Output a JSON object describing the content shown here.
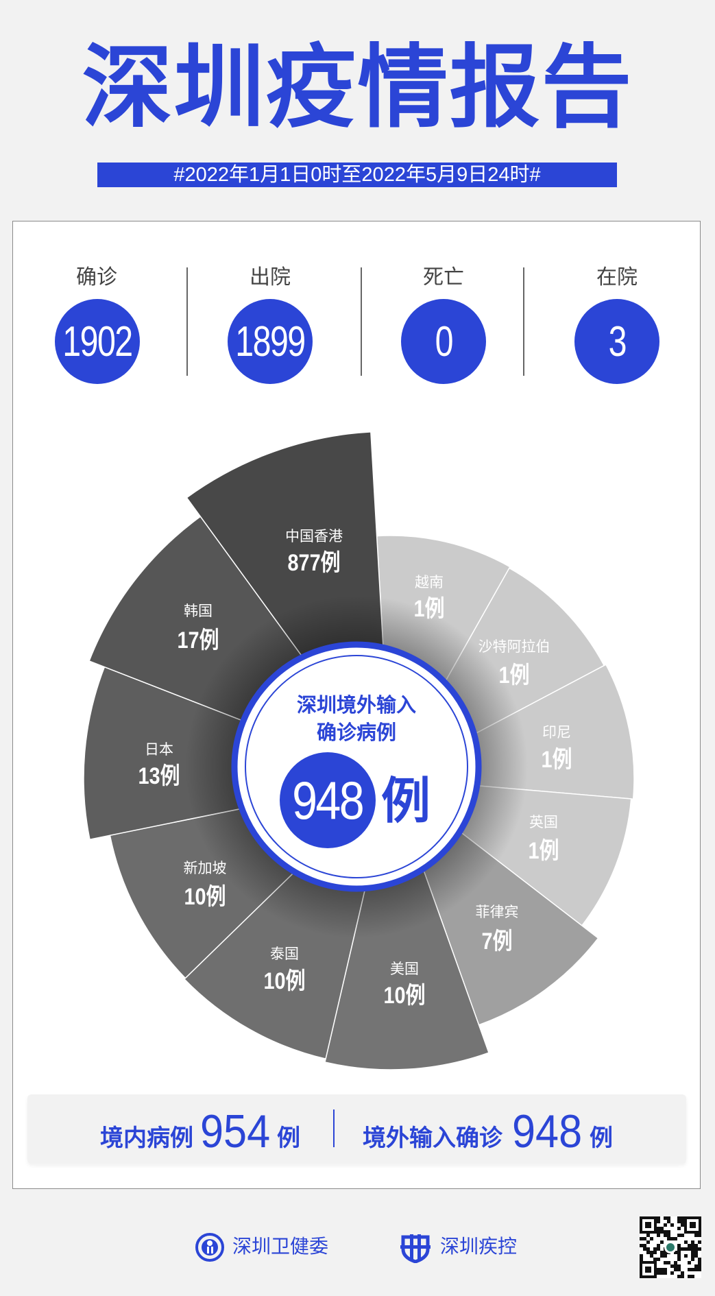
{
  "header": {
    "title": "深圳疫情报告",
    "date_range": "#2022年1月1日0时至2022年5月9日24时#"
  },
  "stats": [
    {
      "label": "确诊",
      "value": "1902"
    },
    {
      "label": "出院",
      "value": "1899"
    },
    {
      "label": "死亡",
      "value": "0"
    },
    {
      "label": "在院",
      "value": "3"
    }
  ],
  "chart_data": {
    "type": "pie",
    "subtype": "rose",
    "center_title_line1": "深圳境外输入",
    "center_title_line2": "确诊病例",
    "center_total": "948",
    "center_unit": "例",
    "unit": "例",
    "categories": [
      "越南",
      "沙特阿拉伯",
      "印尼",
      "英国",
      "菲律宾",
      "美国",
      "泰国",
      "新加坡",
      "日本",
      "韩国",
      "中国香港"
    ],
    "values": [
      1,
      1,
      1,
      1,
      7,
      10,
      10,
      10,
      13,
      17,
      877
    ],
    "value_labels": [
      "1例",
      "1例",
      "1例",
      "1例",
      "7例",
      "10例",
      "10例",
      "10例",
      "13例",
      "17例",
      "877例"
    ],
    "colors": [
      "#cbcbcb",
      "#cbcbcb",
      "#cbcbcb",
      "#cbcbcb",
      "#a0a0a0",
      "#747474",
      "#6f6f6f",
      "#6c6c6c",
      "#5e5e5e",
      "#565656",
      "#484848"
    ]
  },
  "summary": {
    "domestic_label": "境内病例",
    "domestic_value": "954",
    "domestic_unit": "例",
    "imported_label": "境外输入确诊",
    "imported_value": "948",
    "imported_unit": "例"
  },
  "footer": {
    "org1": "深圳卫健委",
    "org2": "深圳疾控"
  },
  "colors": {
    "accent": "#2b45d6",
    "background": "#f2f2f2"
  }
}
